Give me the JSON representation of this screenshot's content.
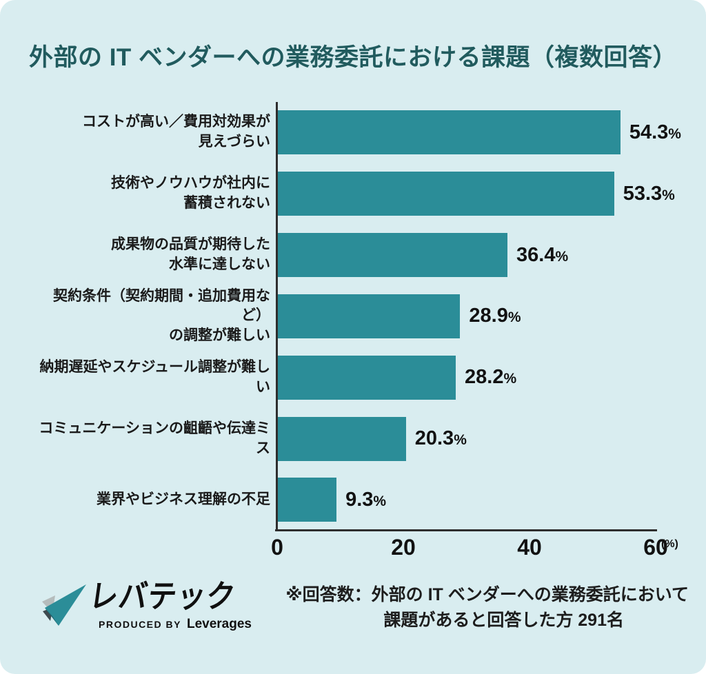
{
  "title": "外部の IT ベンダーへの業務委託における課題（複数回答）",
  "colors": {
    "background": "#d9edf0",
    "bar": "#2b8d98",
    "title_text": "#215b5e",
    "axis": "#2e2e2e",
    "logo_teal": "#2b8d98"
  },
  "chart_data": {
    "type": "bar",
    "orientation": "horizontal",
    "title": "外部の IT ベンダーへの業務委託における課題（複数回答）",
    "categories": [
      "コストが高い／費用対効果が\n見えづらい",
      "技術やノウハウが社内に\n蓄積されない",
      "成果物の品質が期待した\n水準に達しない",
      "契約条件（契約期間・追加費用など）\nの調整が難しい",
      "納期遅延やスケジュール調整が難しい",
      "コミュニケーションの齟齬や伝達ミス",
      "業界やビジネス理解の不足"
    ],
    "values": [
      54.3,
      53.3,
      36.4,
      28.9,
      28.2,
      20.3,
      9.3
    ],
    "unit": "%",
    "xlim": [
      0,
      60
    ],
    "xticks": [
      0,
      20,
      40,
      60
    ],
    "axis_unit_label": "(%)",
    "grid": "off",
    "legend": "none"
  },
  "footer": {
    "logo": {
      "brand": "レバテック",
      "produced_by": "PRODUCED BY",
      "company": "Leverages"
    },
    "note_line1": "※回答数：外部の IT ベンダーへの業務委託において",
    "note_line2": "課題があると回答した方 291名"
  }
}
